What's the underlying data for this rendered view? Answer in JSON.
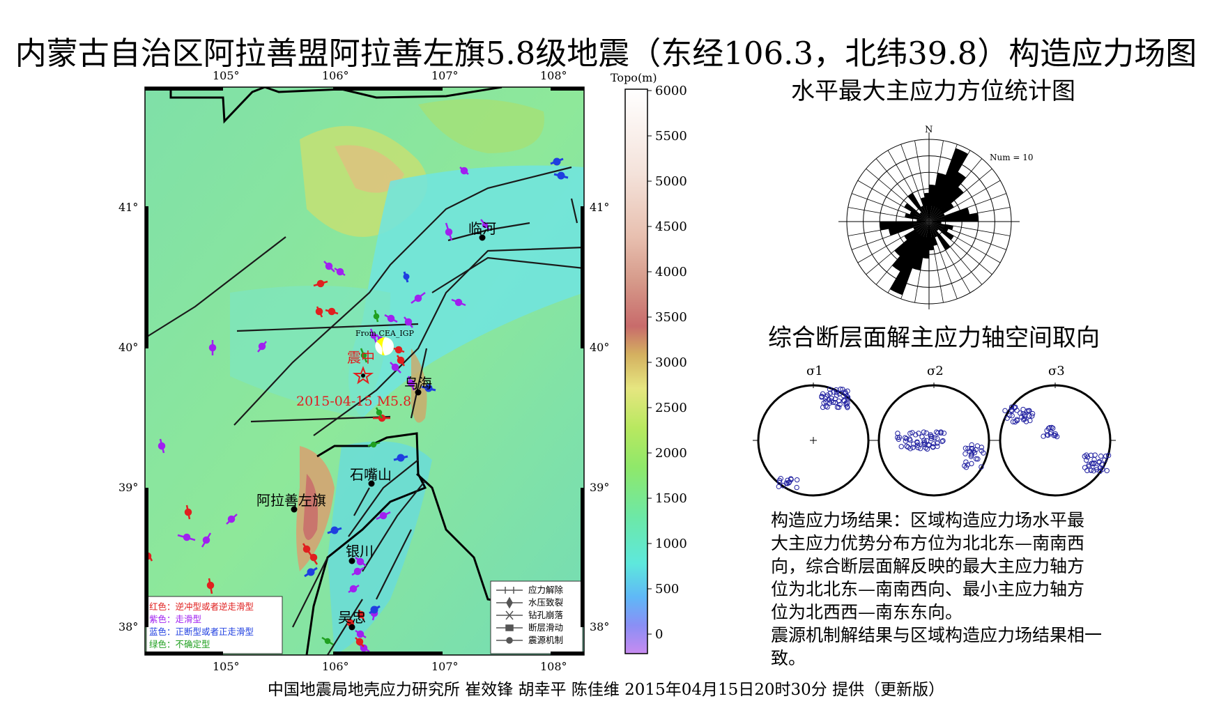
{
  "title": "内蒙古自治区阿拉善盟阿拉善左旗5.8级地震（东经106.3，北纬39.8）构造应力场图",
  "footer": "中国地震局地壳应力研究所 崔效锋 胡幸平 陈佳维 2015年04月15日20时30分 提供（更新版）",
  "map": {
    "lon_ticks": [
      "105°",
      "106°",
      "107°",
      "108°"
    ],
    "lat_ticks": [
      "41°",
      "40°",
      "39°",
      "38°"
    ],
    "lon_range": [
      104.3,
      108.3
    ],
    "lat_range": [
      37.8,
      41.85
    ],
    "cities": [
      {
        "name": "临河",
        "lon": 107.4,
        "lat": 40.77
      },
      {
        "name": "乌海",
        "lon": 106.8,
        "lat": 39.67
      },
      {
        "name": "石嘴山",
        "lon": 106.37,
        "lat": 39.03
      },
      {
        "name": "阿拉善左旗",
        "lon": 105.67,
        "lat": 38.84
      },
      {
        "name": "银川",
        "lon": 106.27,
        "lat": 38.47
      },
      {
        "name": "吴忠",
        "lon": 106.2,
        "lat": 38.0
      }
    ],
    "epicenter_label": "震中",
    "event_label": "2015-04-15 M5.8",
    "epicenter": {
      "lon": 106.28,
      "lat": 39.82
    },
    "focal_label": "From CEA_IGP",
    "legend_colors": [
      {
        "text": "红色：逆冲型或者逆走滑型",
        "color": "#e0201f"
      },
      {
        "text": "紫色：走滑型",
        "color": "#a020f0"
      },
      {
        "text": "蓝色：正断型或者正走滑型",
        "color": "#1f3fe0"
      },
      {
        "text": "绿色：不确定型",
        "color": "#20a020"
      }
    ],
    "legend_methods": [
      "应力解除",
      "水压致裂",
      "钻孔崩落",
      "断层滑动",
      "震源机制"
    ]
  },
  "colorbar": {
    "label": "Topo(m)",
    "ticks": [
      "6000",
      "5500",
      "5000",
      "4500",
      "4000",
      "3500",
      "3000",
      "2500",
      "2000",
      "1500",
      "1000",
      "500",
      "0"
    ]
  },
  "rose": {
    "title": "水平最大主应力方位统计图",
    "north": "N",
    "num_label": "Num = 10"
  },
  "stereonets": {
    "title": "综合断层面解主应力轴空间取向",
    "labels": [
      "σ1",
      "σ2",
      "σ3"
    ]
  },
  "result_text": [
    "构造应力场结果：区域构造应力场水平最",
    "大主应力优势分布方位为北北东—南南西",
    "向，综合断层面解反映的最大主应力轴方",
    "位为北北东—南南西向、最小主应力轴方",
    "位为北西西—南东东向。",
    "震源机制解结果与区域构造应力场结果相一",
    "致。"
  ]
}
